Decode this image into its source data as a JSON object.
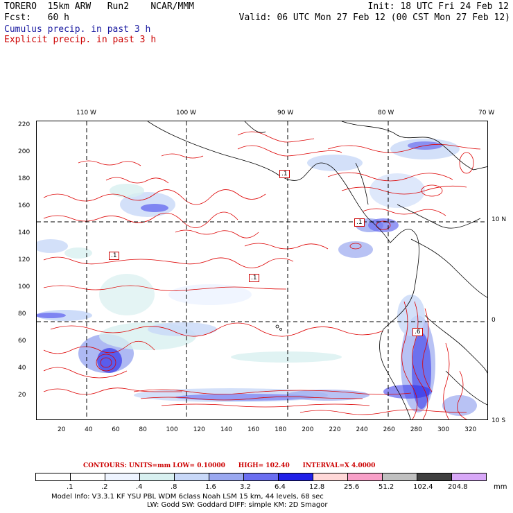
{
  "header": {
    "model": "TORERO",
    "resolution": "15km ARW",
    "run": "Run2",
    "org": "NCAR/MMM",
    "init_label": "Init: 18 UTC Fri 24 Feb 12",
    "fcst_label": "Fcst:",
    "fcst_value": "60 h",
    "valid_label": "Valid: 06 UTC Mon 27 Feb 12 (00 CST Mon 27 Feb 12)",
    "field1": "Cumulus precip. in past 3 h",
    "field2": "Explicit precip. in past 3 h"
  },
  "axes": {
    "top_lon": [
      "110 W",
      "100 W",
      "90 W",
      "80 W",
      "70 W"
    ],
    "right_lat": [
      "10 N",
      "0",
      "10 S"
    ],
    "x_ticks": [
      "20",
      "40",
      "60",
      "80",
      "100",
      "120",
      "140",
      "160",
      "180",
      "200",
      "220",
      "240",
      "260",
      "280",
      "300",
      "320"
    ],
    "y_ticks": [
      "20",
      "40",
      "60",
      "80",
      "100",
      "120",
      "140",
      "160",
      "180",
      "200",
      "220"
    ]
  },
  "map_labels": [
    ".1",
    ".1",
    ".1",
    ".1",
    ".6"
  ],
  "contours_line": {
    "units": "CONTOURS:  UNITS=mm  LOW= 0.10000",
    "high": "HIGH=  102.40",
    "interval": "INTERVAL=X  4.0000"
  },
  "colorbar": {
    "labels": [
      ".1",
      ".2",
      ".4",
      ".8",
      "1.6",
      "3.2",
      "6.4",
      "12.8",
      "25.6",
      "51.2",
      "102.4",
      "204.8"
    ],
    "unit": "mm",
    "colors": [
      "#ffffff",
      "#ffffff",
      "#eef4ff",
      "#d8f0f0",
      "#c8d8f8",
      "#9aa8f0",
      "#6a6ef0",
      "#2020e8",
      "#ffd8d8",
      "#f8a0c8",
      "#c0c0c0",
      "#404040",
      "#d8a8f8"
    ]
  },
  "model_info": {
    "line1": "Model Info: V3.3.1     KF      YSU PBL   WDM 6class  Noah LSM  15 km,   44 levels,   68 sec",
    "line2": "LW: Godd SW: Goddard DIFF: simple KM: 2D Smagor"
  }
}
